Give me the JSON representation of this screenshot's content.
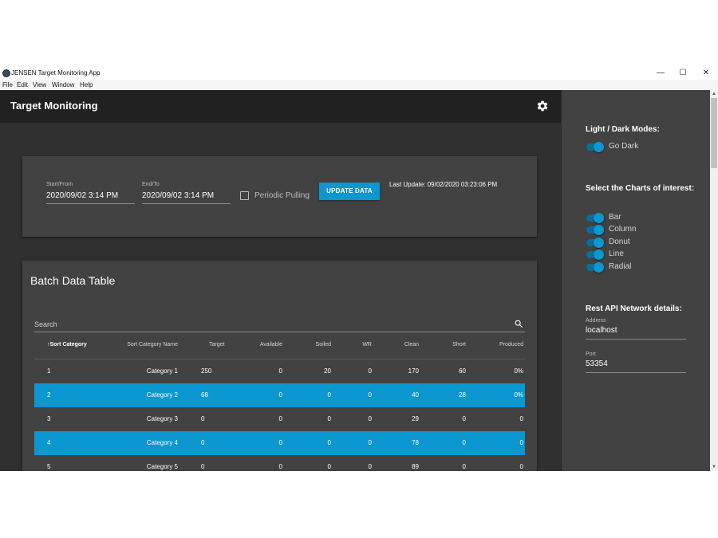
{
  "window": {
    "title": "JENSEN Target Monitoring App",
    "minimize_glyph": "—",
    "maximize_glyph": "☐",
    "close_glyph": "✕",
    "app_icon": "app-logo-icon"
  },
  "menu": [
    "File",
    "Edit",
    "View",
    "Window",
    "Help"
  ],
  "appbar": {
    "title": "Target Monitoring",
    "settings_icon": "gear-icon"
  },
  "filter": {
    "start_label": "Start/From",
    "start_value": "2020/09/02 3:14 PM",
    "end_label": "End/To",
    "end_value": "2020/09/02 3:14 PM",
    "periodic_label": "Periodic Pulling",
    "periodic_checked": false,
    "update_button": "UPDATE DATA",
    "last_update": "Last Update: 09/02/2020 03:23:06 PM"
  },
  "table": {
    "title": "Batch Data Table",
    "search_placeholder": "Search",
    "sort_arrow": "↑",
    "columns": [
      "Sort Category",
      "Sort Category Name",
      "Target",
      "Available",
      "Soiled",
      "WR",
      "Clean",
      "Short",
      "Produced"
    ],
    "rows": [
      {
        "cells": [
          "1",
          "Category 1",
          "250",
          "0",
          "20",
          "0",
          "170",
          "60",
          "0%"
        ],
        "selected": false
      },
      {
        "cells": [
          "2",
          "Category 2",
          "68",
          "0",
          "0",
          "0",
          "40",
          "28",
          "0%"
        ],
        "selected": true
      },
      {
        "cells": [
          "3",
          "Category 3",
          "0",
          "0",
          "0",
          "0",
          "29",
          "0",
          "0"
        ],
        "selected": false
      },
      {
        "cells": [
          "4",
          "Category 4",
          "0",
          "0",
          "0",
          "0",
          "78",
          "0",
          "0"
        ],
        "selected": true
      },
      {
        "cells": [
          "5",
          "Category 5",
          "0",
          "0",
          "0",
          "0",
          "89",
          "0",
          "0"
        ],
        "selected": false
      }
    ]
  },
  "sidepanel": {
    "modes_heading": "Light / Dark Modes:",
    "go_dark_label": "Go Dark",
    "charts_heading": "Select the Charts of interest:",
    "charts": [
      "Bar",
      "Column",
      "Donut",
      "Line",
      "Radial"
    ],
    "network_heading": "Rest API Network details:",
    "address_label": "Address",
    "address_value": "localhost",
    "port_label": "Port",
    "port_value": "53354"
  },
  "colors": {
    "accent": "#0b97cf",
    "app_background": "#303030",
    "card_background": "#424242",
    "appbar_background": "#212121"
  }
}
